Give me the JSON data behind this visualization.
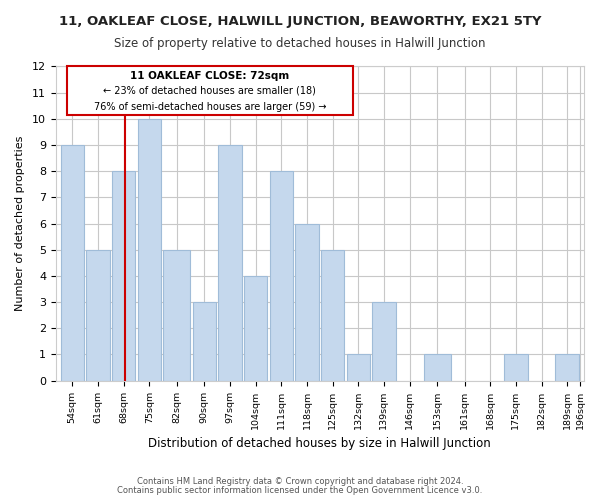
{
  "title": "11, OAKLEAF CLOSE, HALWILL JUNCTION, BEAWORTHY, EX21 5TY",
  "subtitle": "Size of property relative to detached houses in Halwill Junction",
  "xlabel": "Distribution of detached houses by size in Halwill Junction",
  "ylabel": "Number of detached properties",
  "bar_color": "#c5d8ed",
  "bar_edge_color": "#a0bcd8",
  "background_color": "#ffffff",
  "grid_color": "#c8c8c8",
  "annotation_box_color": "#ffffff",
  "annotation_box_edge": "#cc0000",
  "property_line_color": "#cc0000",
  "bin_starts": [
    54,
    61,
    68,
    75,
    82,
    90,
    97,
    104,
    111,
    118,
    125,
    132,
    139,
    146,
    153,
    161,
    168,
    175,
    182,
    189
  ],
  "bin_widths": [
    7,
    7,
    7,
    7,
    8,
    7,
    7,
    7,
    7,
    7,
    7,
    7,
    7,
    7,
    8,
    7,
    7,
    7,
    7,
    7
  ],
  "bin_labels": [
    "54sqm",
    "61sqm",
    "68sqm",
    "75sqm",
    "82sqm",
    "90sqm",
    "97sqm",
    "104sqm",
    "111sqm",
    "118sqm",
    "125sqm",
    "132sqm",
    "139sqm",
    "146sqm",
    "153sqm",
    "161sqm",
    "168sqm",
    "175sqm",
    "182sqm",
    "189sqm"
  ],
  "last_label": "196sqm",
  "counts": [
    9,
    5,
    8,
    10,
    5,
    3,
    9,
    4,
    8,
    6,
    5,
    1,
    3,
    0,
    1,
    0,
    0,
    1,
    0,
    1
  ],
  "ylim": [
    0,
    12
  ],
  "yticks": [
    0,
    1,
    2,
    3,
    4,
    5,
    6,
    7,
    8,
    9,
    10,
    11,
    12
  ],
  "property_value": 72,
  "annotation_line1": "11 OAKLEAF CLOSE: 72sqm",
  "annotation_line2": "← 23% of detached houses are smaller (18)",
  "annotation_line3": "76% of semi-detached houses are larger (59) →",
  "footer_line1": "Contains HM Land Registry data © Crown copyright and database right 2024.",
  "footer_line2": "Contains public sector information licensed under the Open Government Licence v3.0."
}
